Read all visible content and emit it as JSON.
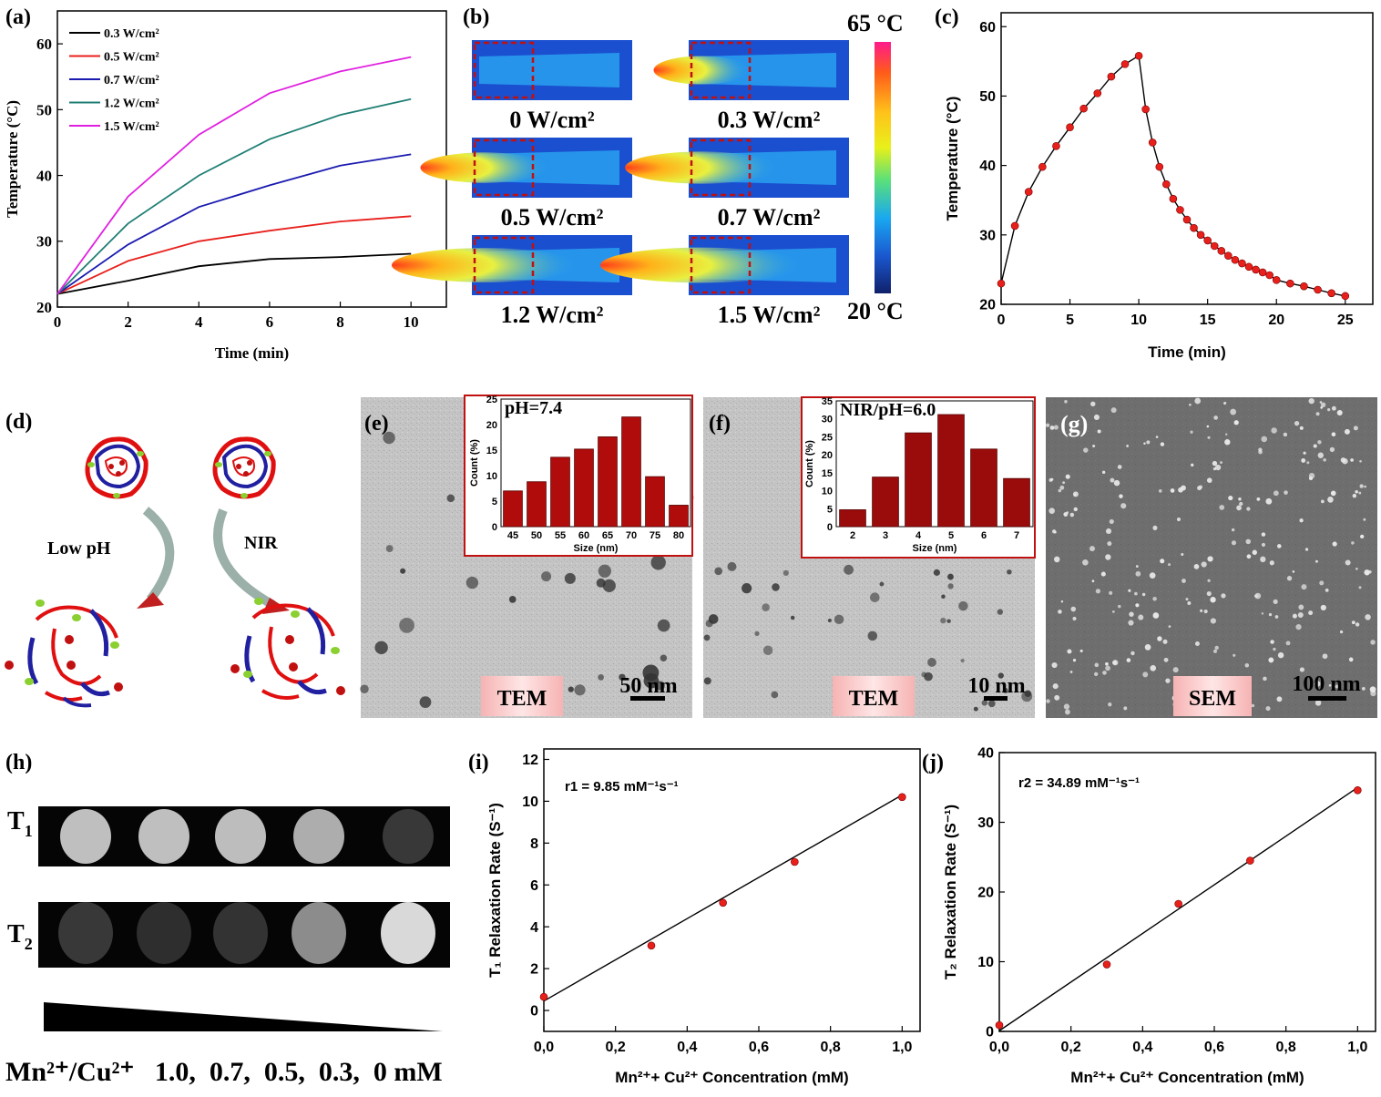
{
  "panels": {
    "a": {
      "letter": "(a)"
    },
    "b": {
      "letter": "(b)",
      "scale_max": "65 °C",
      "scale_min": "20 °C",
      "images": [
        {
          "label": "0 W/cm²",
          "intensity": 0.0
        },
        {
          "label": "0.3 W/cm²",
          "intensity": 0.25
        },
        {
          "label": "0.5 W/cm²",
          "intensity": 0.45
        },
        {
          "label": "0.7 W/cm²",
          "intensity": 0.6
        },
        {
          "label": "1.2 W/cm²",
          "intensity": 0.8
        },
        {
          "label": "1.5 W/cm²",
          "intensity": 0.9
        }
      ]
    },
    "c": {
      "letter": "(c)"
    },
    "d": {
      "letter": "(d)",
      "low_ph_label": "Low pH",
      "nir_label": "NIR"
    },
    "e": {
      "letter": "(e)",
      "badge": "TEM",
      "scale_bar": "50 nm"
    },
    "f": {
      "letter": "(f)",
      "badge": "TEM",
      "scale_bar": "10 nm"
    },
    "g": {
      "letter": "(g)",
      "badge": "SEM",
      "scale_bar": "100 nm"
    },
    "h": {
      "letter": "(h)",
      "t1_label": "T",
      "t1_sub": "1",
      "t2_label": "T",
      "t2_sub": "2",
      "conc_label": "Mn²⁺/Cu²⁺   1.0,  0.7,  0.5,  0.3,  0 mM",
      "t1_gray": [
        0.75,
        0.75,
        0.74,
        0.68,
        0.22
      ],
      "t2_gray": [
        0.22,
        0.18,
        0.2,
        0.55,
        0.85
      ]
    },
    "i": {
      "letter": "(i)",
      "annotation": "r1 = 9.85 mM⁻¹s⁻¹"
    },
    "j": {
      "letter": "(j)",
      "annotation": "r2 = 34.89 mM⁻¹s⁻¹"
    }
  },
  "chart_data": [
    {
      "id": "a",
      "type": "line",
      "xlabel": "Time (min)",
      "ylabel": "Temperature (°C)",
      "xlim": [
        0,
        11
      ],
      "ylim": [
        20,
        65
      ],
      "xticks": [
        0,
        2,
        4,
        6,
        8,
        10
      ],
      "yticks": [
        20,
        30,
        40,
        50,
        60
      ],
      "x": [
        0,
        2,
        4,
        6,
        8,
        10
      ],
      "legend_position": "top-left",
      "series": [
        {
          "name": "0.3 W/cm²",
          "color": "#000000",
          "values": [
            22,
            24,
            26.2,
            27.3,
            27.6,
            28.1
          ]
        },
        {
          "name": "0.5 W/cm²",
          "color": "#e8201c",
          "values": [
            22,
            27,
            30,
            31.6,
            33,
            33.8
          ]
        },
        {
          "name": "0.7 W/cm²",
          "color": "#1a1ab0",
          "values": [
            22,
            29.5,
            35.2,
            38.5,
            41.5,
            43.2
          ]
        },
        {
          "name": "1.2 W/cm²",
          "color": "#1f7f74",
          "values": [
            22,
            32.7,
            40,
            45.5,
            49.2,
            51.6
          ]
        },
        {
          "name": "1.5 W/cm²",
          "color": "#e020e0",
          "values": [
            22,
            36.8,
            46.2,
            52.5,
            55.8,
            58
          ]
        }
      ]
    },
    {
      "id": "c",
      "type": "line",
      "xlabel": "Time (min)",
      "ylabel": "Temperature (°C)",
      "xlim": [
        0,
        27
      ],
      "ylim": [
        20,
        62
      ],
      "xticks": [
        0,
        5,
        10,
        15,
        20,
        25
      ],
      "yticks": [
        20,
        30,
        40,
        50,
        60
      ],
      "x": [
        0,
        1,
        2,
        3,
        4,
        5,
        6,
        7,
        8,
        9,
        10,
        10.5,
        11,
        11.5,
        12,
        12.5,
        13,
        13.5,
        14,
        14.5,
        15,
        15.5,
        16,
        16.5,
        17,
        17.5,
        18,
        18.5,
        19,
        19.5,
        20,
        21,
        22,
        23,
        24,
        25
      ],
      "series": [
        {
          "name": "",
          "color": "#000000",
          "marker_color": "#e8201c",
          "values": [
            23,
            31.3,
            36.2,
            39.8,
            42.8,
            45.5,
            48.2,
            50.4,
            52.8,
            54.6,
            55.8,
            48.1,
            43.3,
            39.8,
            37.3,
            35.2,
            33.6,
            32.2,
            31,
            30,
            29.2,
            28.4,
            27.7,
            27,
            26.4,
            25.9,
            25.4,
            25,
            24.6,
            24.2,
            23.5,
            23,
            22.6,
            22.1,
            21.6,
            21.2
          ]
        }
      ]
    },
    {
      "id": "e_inset",
      "type": "bar",
      "title": "pH=7.4",
      "xlabel": "Size (nm)",
      "ylabel": "Count (%)",
      "categories": [
        "45",
        "50",
        "55",
        "60",
        "65",
        "70",
        "75",
        "80"
      ],
      "values": [
        7,
        8.8,
        13.6,
        15.2,
        17.6,
        21.5,
        9.8,
        4.2
      ],
      "ylim": [
        0,
        25
      ],
      "yticks": [
        0,
        5,
        10,
        15,
        20,
        25
      ],
      "color": "#b00c0c"
    },
    {
      "id": "f_inset",
      "type": "bar",
      "title": "NIR/pH=6.0",
      "xlabel": "Size (nm)",
      "ylabel": "Count (%)",
      "categories": [
        "2",
        "3",
        "4",
        "5",
        "6",
        "7"
      ],
      "values": [
        4.7,
        13.8,
        26.1,
        31.2,
        21.6,
        13.4
      ],
      "ylim": [
        0,
        35
      ],
      "yticks": [
        0,
        5,
        10,
        15,
        20,
        25,
        30,
        35
      ],
      "color": "#9a0c0c"
    },
    {
      "id": "i",
      "type": "scatter",
      "xlabel": "Mn²⁺+ Cu²⁺ Concentration (mM)",
      "ylabel": "T₁ Relaxation Rate (S⁻¹)",
      "xlim": [
        0,
        1.05
      ],
      "ylim": [
        -1,
        12.5
      ],
      "xticks": [
        "0,0",
        "0,2",
        "0,4",
        "0,6",
        "0,8",
        "1,0"
      ],
      "xtick_values": [
        0,
        0.2,
        0.4,
        0.6,
        0.8,
        1.0
      ],
      "yticks": [
        0,
        2,
        4,
        6,
        8,
        10,
        12
      ],
      "x": [
        0,
        0.3,
        0.5,
        0.7,
        1.0
      ],
      "y": [
        0.65,
        3.1,
        5.15,
        7.1,
        10.2
      ],
      "fit": {
        "slope": 9.85,
        "intercept": 0.45
      }
    },
    {
      "id": "j",
      "type": "scatter",
      "xlabel": "Mn²⁺+ Cu²⁺ Concentration (mM)",
      "ylabel": "T₂ Relaxation Rate (S⁻¹)",
      "xlim": [
        0,
        1.05
      ],
      "ylim": [
        0,
        40
      ],
      "xticks": [
        "0,0",
        "0,2",
        "0,4",
        "0,6",
        "0,8",
        "1,0"
      ],
      "xtick_values": [
        0,
        0.2,
        0.4,
        0.6,
        0.8,
        1.0
      ],
      "yticks": [
        0,
        10,
        20,
        30,
        40
      ],
      "x": [
        0,
        0.3,
        0.5,
        0.7,
        1.0
      ],
      "y": [
        0.9,
        9.6,
        18.3,
        24.5,
        34.6
      ],
      "fit": {
        "slope": 34.89,
        "intercept": 0.1
      }
    }
  ]
}
